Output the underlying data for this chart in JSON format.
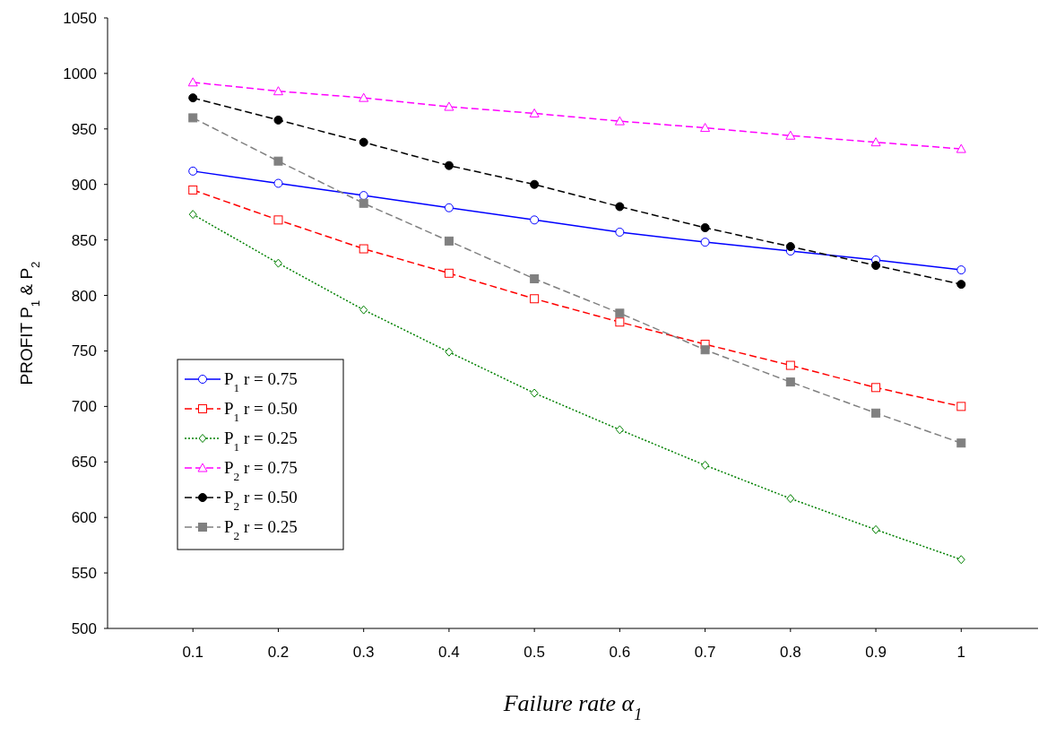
{
  "chart_data": {
    "type": "line",
    "xlabel": "Failure rate α$_{1}$",
    "ylabel": "PROFIT  P$_{1}$ & P$_{2}$",
    "x": [
      0.1,
      0.2,
      0.3,
      0.4,
      0.5,
      0.6,
      0.7,
      0.8,
      0.9,
      1
    ],
    "xlim": [
      0,
      1.09
    ],
    "xticks": [
      0.1,
      0.2,
      0.3,
      0.4,
      0.5,
      0.6,
      0.7,
      0.8,
      0.9,
      1
    ],
    "ylim": [
      500,
      1050
    ],
    "yticks": [
      500,
      550,
      600,
      650,
      700,
      750,
      800,
      850,
      900,
      950,
      1000,
      1050
    ],
    "grid": false,
    "legend": "bottom left",
    "series": [
      {
        "name": "P$_{1}$  r = 0.75",
        "color": "#0000ff",
        "marker": "circle",
        "line_style": "solid",
        "values": [
          912,
          901,
          890,
          879,
          868,
          857,
          848,
          840,
          832,
          823
        ]
      },
      {
        "name": "P$_{1}$  r = 0.50",
        "color": "#ff0000",
        "marker": "square",
        "line_style": "dashed",
        "values": [
          895,
          868,
          842,
          820,
          797,
          776,
          756,
          737,
          717,
          700
        ]
      },
      {
        "name": "P$_{1}$  r = 0.25",
        "color": "#008000",
        "marker": "diamond",
        "line_style": "dotted",
        "values": [
          873,
          829,
          787,
          749,
          712,
          679,
          647,
          617,
          589,
          562
        ]
      },
      {
        "name": "P$_{2}$  r = 0.75",
        "color": "#ff00ff",
        "marker": "triangle",
        "line_style": "dashed",
        "values": [
          992,
          984,
          978,
          970,
          964,
          957,
          951,
          944,
          938,
          932
        ]
      },
      {
        "name": "P$_{2}$  r = 0.50",
        "color": "#000000",
        "marker": "circle",
        "line_style": "dashed",
        "values": [
          978,
          958,
          938,
          917,
          900,
          880,
          861,
          844,
          827,
          810
        ]
      },
      {
        "name": "P$_{2}$  r = 0.25",
        "color": "#808080",
        "marker": "square",
        "line_style": "dashed",
        "values": [
          960,
          921,
          883,
          849,
          815,
          784,
          751,
          722,
          694,
          667
        ]
      }
    ]
  }
}
